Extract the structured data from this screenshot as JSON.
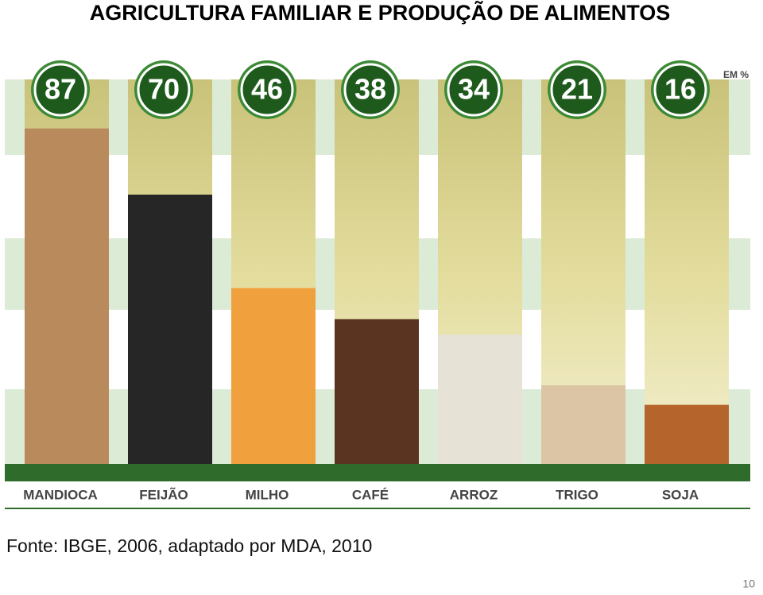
{
  "chart_data": {
    "type": "bar",
    "title": "AGRICULTURA FAMILIAR E PRODUÇÃO DE ALIMENTOS",
    "unit_label": "EM %",
    "categories": [
      "MANDIOCA",
      "FEIJÃO",
      "MILHO",
      "CAFÉ",
      "ARROZ",
      "TRIGO",
      "SOJA"
    ],
    "values": [
      87,
      70,
      46,
      38,
      34,
      21,
      16
    ],
    "colors": [
      "#b98a5c",
      "#262626",
      "#f0a03c",
      "#5b3421",
      "#e6e2d6",
      "#dcc5a4",
      "#b5652c"
    ]
  },
  "source": "Fonte: IBGE, 2006, adaptado por MDA, 2010",
  "page_number": 10
}
